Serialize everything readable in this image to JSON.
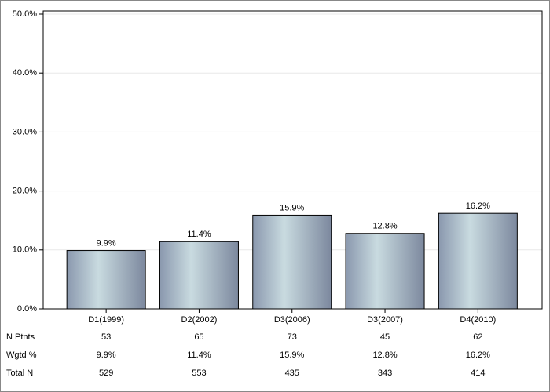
{
  "chart_data": {
    "type": "bar",
    "categories": [
      "D1(1999)",
      "D2(2002)",
      "D3(2006)",
      "D3(2007)",
      "D4(2010)"
    ],
    "values": [
      9.9,
      11.4,
      15.9,
      12.8,
      16.2
    ],
    "value_labels": [
      "9.9%",
      "11.4%",
      "15.9%",
      "12.8%",
      "16.2%"
    ],
    "gradient": [
      "#8a98ae",
      "#c9dbe0",
      "#7c889e"
    ],
    "ylim": [
      0,
      50
    ],
    "yticks": [
      {
        "value": 0,
        "label": "0.0%"
      },
      {
        "value": 10,
        "label": "10.0%"
      },
      {
        "value": 20,
        "label": "20.0%"
      },
      {
        "value": 30,
        "label": "30.0%"
      },
      {
        "value": 40,
        "label": "40.0%"
      },
      {
        "value": 50,
        "label": "50.0%"
      }
    ],
    "grid": true,
    "table": {
      "rows": [
        {
          "label": "N Ptnts",
          "values": [
            53,
            65,
            73,
            45,
            62
          ]
        },
        {
          "label": "Wgtd %",
          "values": [
            9.9,
            11.4,
            15.9,
            12.8,
            16.2
          ],
          "value_labels": [
            "9.9%",
            "11.4%",
            "15.9%",
            "12.8%",
            "16.2%"
          ]
        },
        {
          "label": "Total N",
          "values": [
            529,
            553,
            435,
            343,
            414
          ]
        }
      ]
    }
  }
}
